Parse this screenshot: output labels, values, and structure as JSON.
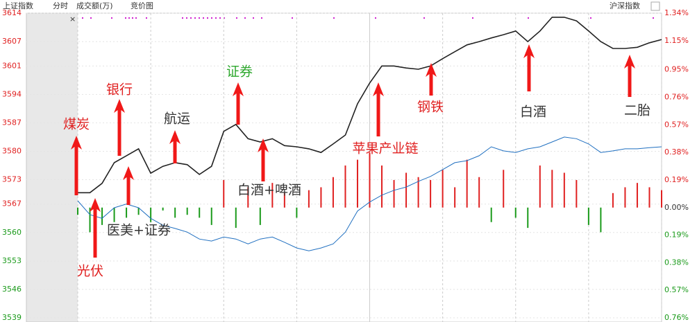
{
  "chart_data": {
    "type": "line",
    "title": "上证指数",
    "tabs": [
      "分时",
      "成交额(万)",
      "竞价图"
    ],
    "selector": "沪深指数",
    "x": [
      0,
      5,
      10,
      15,
      20,
      25,
      30,
      35,
      40,
      45,
      50,
      55,
      60,
      65,
      70,
      75,
      80,
      85,
      90,
      95,
      100,
      105,
      110,
      115,
      120,
      125,
      130,
      135,
      140,
      145,
      150,
      155,
      160,
      165,
      170,
      175,
      180,
      185,
      190,
      195,
      200,
      205,
      210,
      215,
      220,
      225,
      230,
      235,
      240
    ],
    "xlim": [
      0,
      240
    ],
    "xticks": [
      0,
      30,
      60,
      90,
      120,
      150,
      180,
      210,
      240
    ],
    "ylim": [
      3539,
      3614
    ],
    "yticks": [
      3614,
      3607,
      3601,
      3594,
      3587,
      3580,
      3573,
      3567,
      3560,
      3553,
      3546,
      3539
    ],
    "y2lim": [
      -0.76,
      1.34
    ],
    "y2ticks": [
      {
        "value": 1.34,
        "label": "1.34%"
      },
      {
        "value": 1.15,
        "label": "1.15%"
      },
      {
        "value": 0.95,
        "label": "0.95%"
      },
      {
        "value": 0.76,
        "label": "0.76%"
      },
      {
        "value": 0.57,
        "label": "0.57%"
      },
      {
        "value": 0.38,
        "label": "0.38%"
      },
      {
        "value": 0.19,
        "label": "0.19%"
      },
      {
        "value": 0,
        "label": "0.00%"
      },
      {
        "value": -0.19,
        "label": "0.19%"
      },
      {
        "value": -0.38,
        "label": "0.38%"
      },
      {
        "value": -0.57,
        "label": "0.57%"
      },
      {
        "value": -0.76,
        "label": "0.76%"
      }
    ],
    "up_color": "#e02020",
    "down_color": "#1a9a1a",
    "grid": true,
    "series": [
      {
        "color": "#222222",
        "values": [
          3569.8,
          3569.8,
          3572.1,
          3577.2,
          3578.9,
          3580.6,
          3574.6,
          3576.3,
          3577.2,
          3576.7,
          3574.3,
          3576.3,
          3584.9,
          3586.6,
          3583.1,
          3582.3,
          3583.1,
          3581.4,
          3581.1,
          3580.6,
          3579.7,
          3581.8,
          3584.0,
          3591.7,
          3596.8,
          3601.0,
          3601.0,
          3600.5,
          3600.2,
          3601.0,
          3602.8,
          3604.5,
          3606.2,
          3607.0,
          3607.9,
          3608.7,
          3609.6,
          3607.0,
          3609.6,
          3613.0,
          3613.0,
          3612.1,
          3609.6,
          3607.0,
          3605.3,
          3605.3,
          3605.6,
          3606.7,
          3607.5
        ]
      },
      {
        "color": "#1f6fc0",
        "values": [
          3567.8,
          3564.4,
          3563.5,
          3566.1,
          3567.0,
          3566.1,
          3563.5,
          3561.8,
          3561.0,
          3560.1,
          3558.4,
          3557.9,
          3558.9,
          3558.4,
          3557.2,
          3558.4,
          3558.9,
          3557.6,
          3556.2,
          3555.5,
          3556.2,
          3557.2,
          3560.1,
          3565.3,
          3567.5,
          3569.2,
          3570.4,
          3571.2,
          3572.6,
          3573.8,
          3575.5,
          3577.2,
          3577.7,
          3578.9,
          3581.1,
          3580.1,
          3579.7,
          3580.6,
          3581.1,
          3582.3,
          3583.5,
          3583.1,
          3581.8,
          3579.7,
          3580.1,
          3580.6,
          3580.6,
          3580.9,
          3581.1
        ]
      },
      {
        "type": "bar",
        "axis": "y2",
        "values": [
          -0.05,
          -0.17,
          -0.12,
          -0.1,
          -0.07,
          -0.05,
          -0.1,
          -0.02,
          -0.07,
          -0.05,
          -0.07,
          -0.12,
          0.19,
          -0.14,
          0.14,
          -0.12,
          0.17,
          0.1,
          -0.07,
          0.12,
          0.14,
          0.21,
          0.29,
          0.33,
          0.38,
          0.29,
          0.19,
          0.24,
          0.21,
          0.19,
          0.26,
          0.14,
          0.33,
          0.21,
          -0.1,
          0.26,
          -0.07,
          -0.14,
          0.29,
          0.26,
          0.24,
          0.19,
          -0.12,
          -0.17,
          0.1,
          0.14,
          0.17,
          0.14,
          0.12
        ]
      }
    ],
    "annotations": [
      {
        "text": "煤炭",
        "color": "#e02020"
      },
      {
        "text": "光伏",
        "color": "#e02020"
      },
      {
        "text": "银行",
        "color": "#e02020"
      },
      {
        "text": "医美+证券",
        "color": "#333333"
      },
      {
        "text": "航运",
        "color": "#333333"
      },
      {
        "text": "证券",
        "color": "#2ea82e"
      },
      {
        "text": "白酒+啤酒",
        "color": "#333333"
      },
      {
        "text": "苹果产业链",
        "color": "#e02020"
      },
      {
        "text": "钢铁",
        "color": "#e02020"
      },
      {
        "text": "白酒",
        "color": "#333333"
      },
      {
        "text": "二胎",
        "color": "#333333"
      }
    ]
  }
}
